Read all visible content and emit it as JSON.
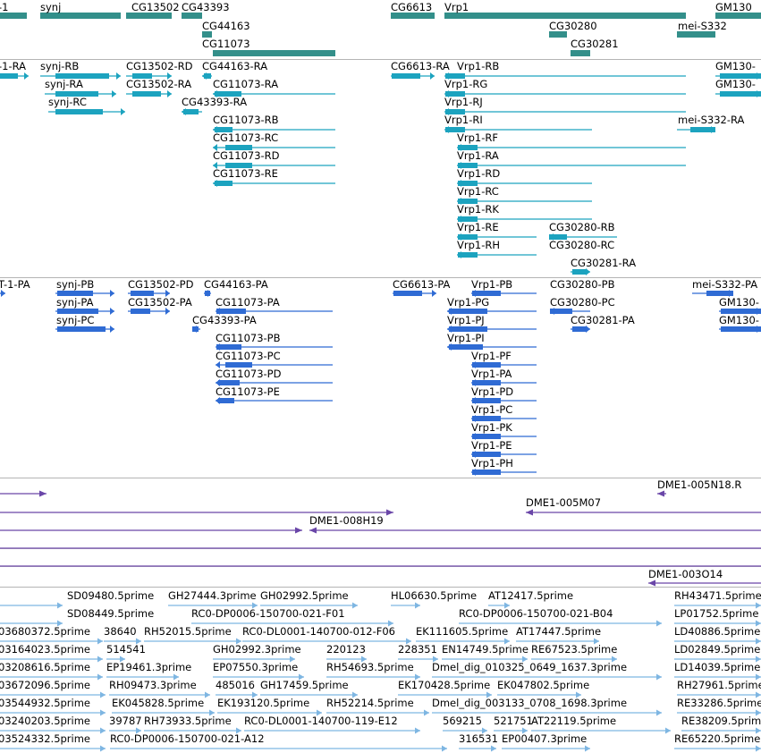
{
  "colors": {
    "gene": "#338f8a",
    "transcript": "#1ca3bf",
    "protein": "#2f6bd4",
    "clone": "#6a46a8",
    "est": "#7eb6e2"
  },
  "tracks": {
    "genes": {
      "features": [
        {
          "label": "-1"
        },
        {
          "label": "synj"
        },
        {
          "label": "CG13502"
        },
        {
          "label": "CG43393"
        },
        {
          "label": "CG44163"
        },
        {
          "label": "CG11073"
        },
        {
          "label": "CG6613"
        },
        {
          "label": "Vrp1"
        },
        {
          "label": "CG30280"
        },
        {
          "label": "CG30281"
        },
        {
          "label": "GM130"
        },
        {
          "label": "mei-S332"
        }
      ]
    },
    "transcripts": {
      "features": [
        {
          "label": "-1-RA"
        },
        {
          "label": "synj-RB"
        },
        {
          "label": "synj-RA"
        },
        {
          "label": "synj-RC"
        },
        {
          "label": "CG13502-RD"
        },
        {
          "label": "CG13502-RA"
        },
        {
          "label": "CG43393-RA"
        },
        {
          "label": "CG44163-RA"
        },
        {
          "label": "CG11073-RA"
        },
        {
          "label": "CG11073-RB"
        },
        {
          "label": "CG11073-RC"
        },
        {
          "label": "CG11073-RD"
        },
        {
          "label": "CG11073-RE"
        },
        {
          "label": "CG6613-RA"
        },
        {
          "label": "Vrp1-RB"
        },
        {
          "label": "Vrp1-RG"
        },
        {
          "label": "Vrp1-RJ"
        },
        {
          "label": "Vrp1-RI"
        },
        {
          "label": "Vrp1-RF"
        },
        {
          "label": "Vrp1-RA"
        },
        {
          "label": "Vrp1-RD"
        },
        {
          "label": "Vrp1-RC"
        },
        {
          "label": "Vrp1-RK"
        },
        {
          "label": "Vrp1-RE"
        },
        {
          "label": "Vrp1-RH"
        },
        {
          "label": "CG30280-RB"
        },
        {
          "label": "CG30280-RC"
        },
        {
          "label": "CG30281-RA"
        },
        {
          "label": "GM130-"
        },
        {
          "label": "GM130-"
        },
        {
          "label": "mei-S332-RA"
        }
      ]
    },
    "proteins": {
      "features": [
        {
          "label": "T-1-PA"
        },
        {
          "label": "synj-PB"
        },
        {
          "label": "synj-PA"
        },
        {
          "label": "synj-PC"
        },
        {
          "label": "CG13502-PD"
        },
        {
          "label": "CG13502-PA"
        },
        {
          "label": "CG44163-PA"
        },
        {
          "label": "CG11073-PA"
        },
        {
          "label": "CG43393-PA"
        },
        {
          "label": "CG11073-PB"
        },
        {
          "label": "CG11073-PC"
        },
        {
          "label": "CG11073-PD"
        },
        {
          "label": "CG11073-PE"
        },
        {
          "label": "CG6613-PA"
        },
        {
          "label": "Vrp1-PB"
        },
        {
          "label": "Vrp1-PG"
        },
        {
          "label": "Vrp1-PJ"
        },
        {
          "label": "Vrp1-PI"
        },
        {
          "label": "Vrp1-PF"
        },
        {
          "label": "Vrp1-PA"
        },
        {
          "label": "Vrp1-PD"
        },
        {
          "label": "Vrp1-PC"
        },
        {
          "label": "Vrp1-PK"
        },
        {
          "label": "Vrp1-PE"
        },
        {
          "label": "Vrp1-PH"
        },
        {
          "label": "CG30280-PB"
        },
        {
          "label": "CG30280-PC"
        },
        {
          "label": "CG30281-PA"
        },
        {
          "label": "mei-S332-PA"
        },
        {
          "label": "GM130-"
        },
        {
          "label": "GM130-"
        }
      ]
    },
    "clones": {
      "features": [
        {
          "label": "DME1-005N18.R"
        },
        {
          "label": "DME1-005M07"
        },
        {
          "label": "DME1-008H19"
        },
        {
          "label": "DME1-003O14"
        }
      ]
    },
    "ests": {
      "features": [
        {
          "label": "SD09480.5prime"
        },
        {
          "label": "GH27444.3prime"
        },
        {
          "label": "GH02992.5prime"
        },
        {
          "label": "HL06630.5prime"
        },
        {
          "label": "AT12417.5prime"
        },
        {
          "label": "RH43471.5prime"
        },
        {
          "label": "SD08449.5prime"
        },
        {
          "label": "RC0-DP0006-150700-021-F01"
        },
        {
          "label": "RC0-DP0006-150700-021-B04"
        },
        {
          "label": "LP01752.5prime"
        },
        {
          "label": "03680372.5prime"
        },
        {
          "label": "38640"
        },
        {
          "label": "RH52015.5prime"
        },
        {
          "label": "RC0-DL0001-140700-012-F06"
        },
        {
          "label": "EK111605.5prime"
        },
        {
          "label": "AT17447.5prime"
        },
        {
          "label": "LD40886.5prime"
        },
        {
          "label": "03164023.5prime"
        },
        {
          "label": "514541"
        },
        {
          "label": "GH02992.3prime"
        },
        {
          "label": "220123"
        },
        {
          "label": "228351"
        },
        {
          "label": "EN14749.5prime"
        },
        {
          "label": "RE67523.5prime"
        },
        {
          "label": "LD02849.5prime"
        },
        {
          "label": "03208616.5prime"
        },
        {
          "label": "EP19461.3prime"
        },
        {
          "label": "EP07550.3prime"
        },
        {
          "label": "RH54693.5prime"
        },
        {
          "label": "Dmel_dig_010325_0649_1637.3prime"
        },
        {
          "label": "LD14039.5prime"
        },
        {
          "label": "03672096.5prime"
        },
        {
          "label": "RH09473.3prime"
        },
        {
          "label": "485016"
        },
        {
          "label": "GH17459.5prime"
        },
        {
          "label": "EK170428.5prime"
        },
        {
          "label": "EK047802.5prime"
        },
        {
          "label": "RH27961.5prime"
        },
        {
          "label": "03544932.5prime"
        },
        {
          "label": "EK045828.5prime"
        },
        {
          "label": "EK193120.5prime"
        },
        {
          "label": "RH52214.5prime"
        },
        {
          "label": "Dmel_dig_003133_0708_1698.3prime"
        },
        {
          "label": "RE33286.5prime"
        },
        {
          "label": "03240203.5prime"
        },
        {
          "label": "39787"
        },
        {
          "label": "RH73933.5prime"
        },
        {
          "label": "RC0-DL0001-140700-119-E12"
        },
        {
          "label": "569215"
        },
        {
          "label": "521751"
        },
        {
          "label": "AT22119.5prime"
        },
        {
          "label": "RE38209.5prime"
        },
        {
          "label": "03524332.5prime"
        },
        {
          "label": "RC0-DP0006-150700-021-A12"
        },
        {
          "label": "316531"
        },
        {
          "label": "EP00407.3prime"
        },
        {
          "label": "RE65220.5prime"
        }
      ]
    }
  }
}
